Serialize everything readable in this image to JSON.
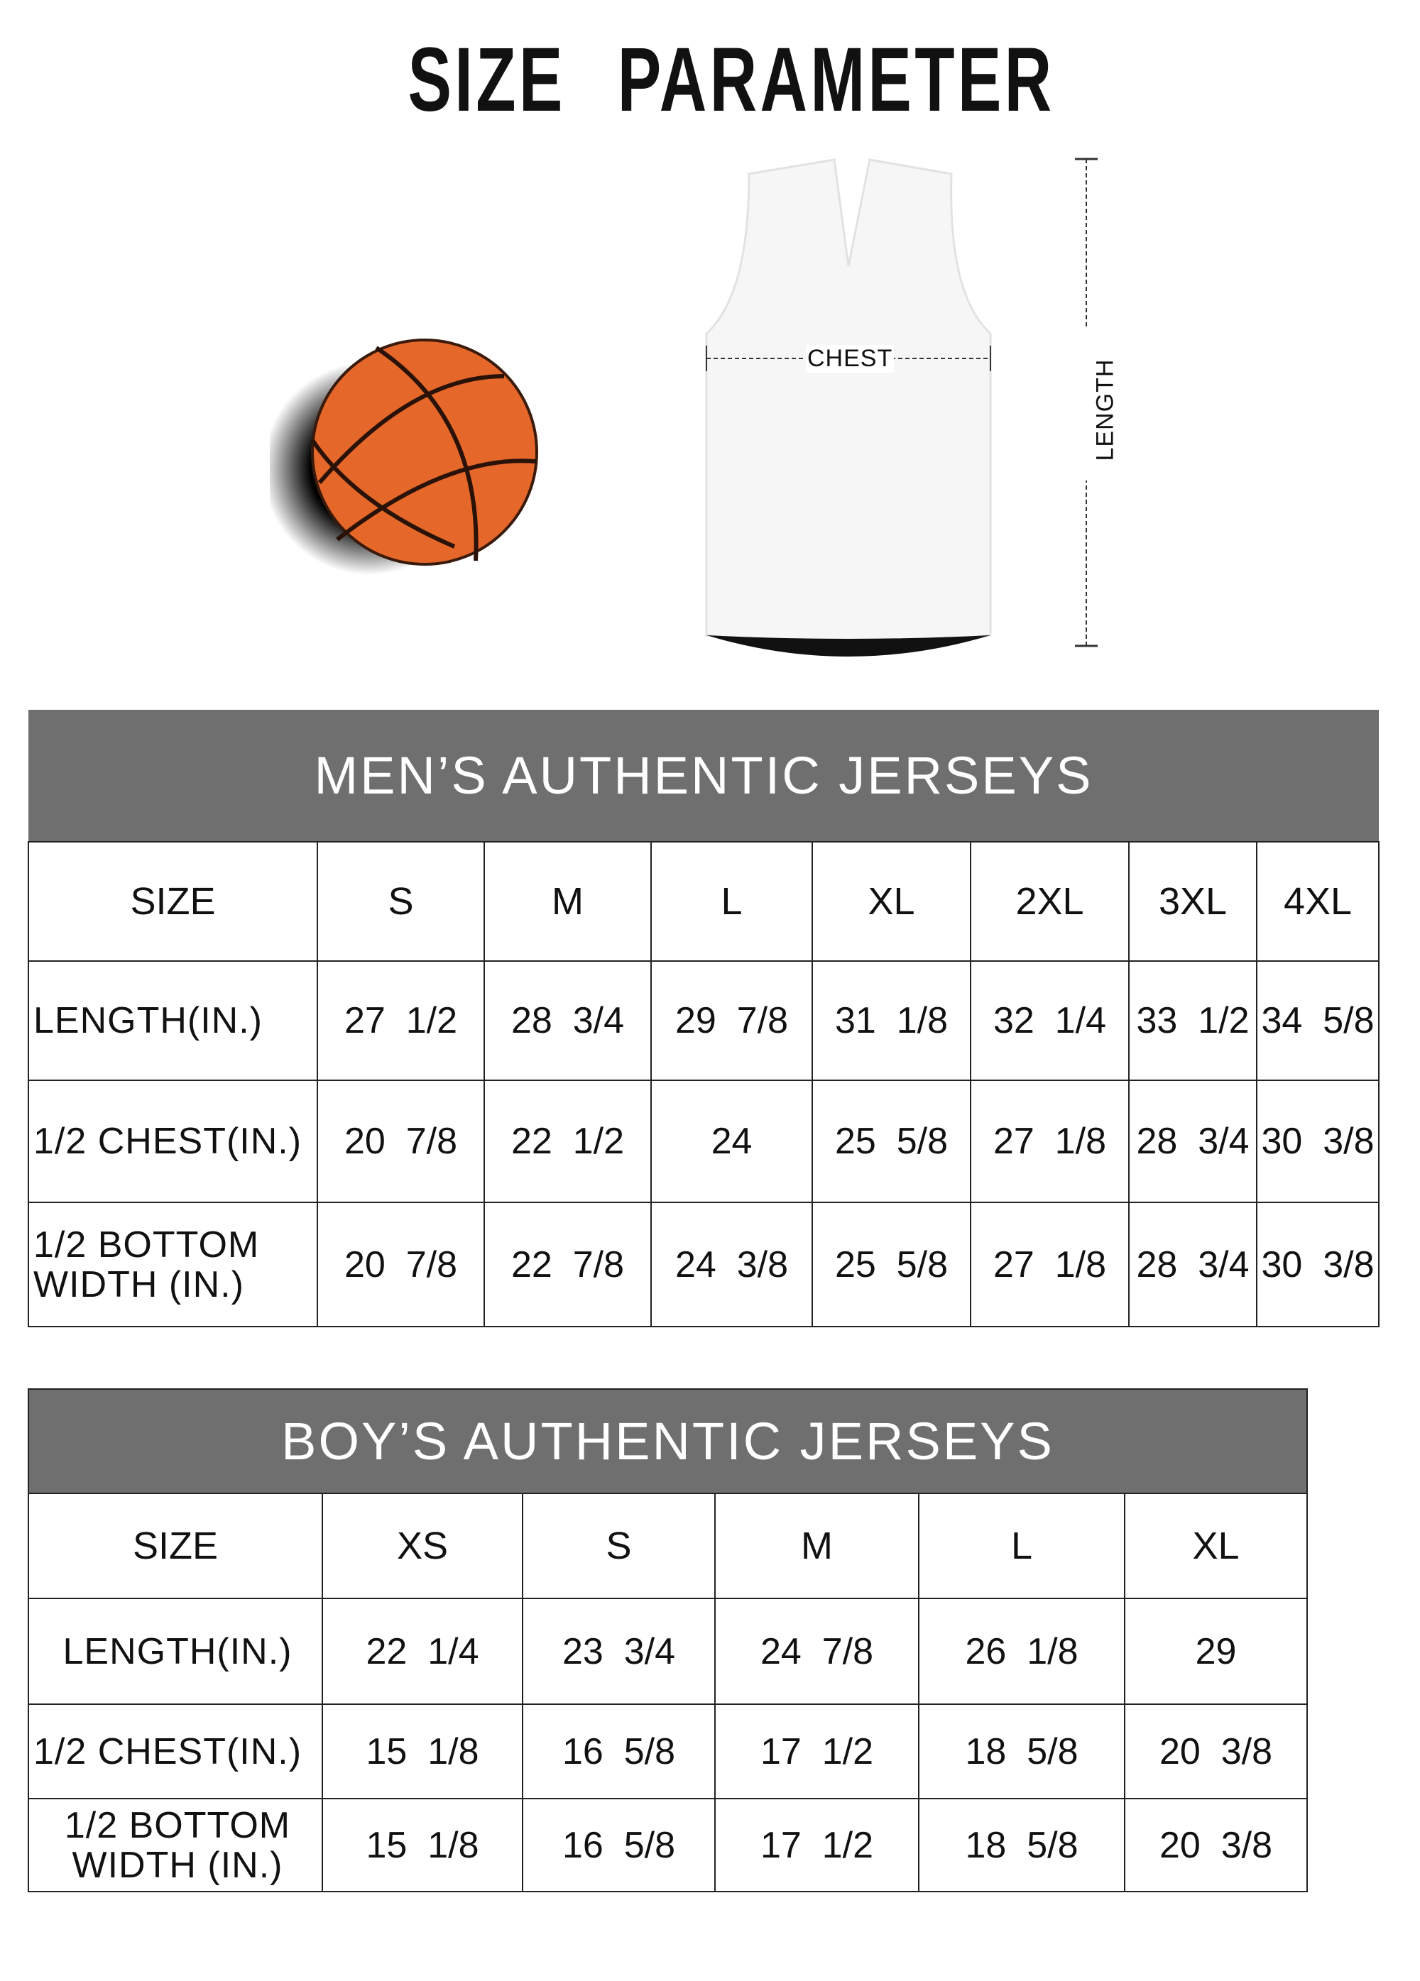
{
  "title": "SIZE PARAMETER",
  "diagram": {
    "chest_label": "CHEST",
    "length_label": "LENGTH",
    "ball_color": "#e5682a"
  },
  "colors": {
    "header_bg": "#6f6f6f",
    "header_text": "#ffffff"
  },
  "men": {
    "title": "MEN’S AUTHENTIC JERSEYS",
    "size_label": "SIZE",
    "sizes": [
      "S",
      "M",
      "L",
      "XL",
      "2XL",
      "3XL",
      "4XL"
    ],
    "rows": [
      {
        "label": "LENGTH(IN.)",
        "values": [
          "27  1/2",
          "28  3/4",
          "29  7/8",
          "31  1/8",
          "32  1/4",
          "33  1/2",
          "34  5/8"
        ]
      },
      {
        "label": "1/2 CHEST(IN.)",
        "values": [
          "20  7/8",
          "22  1/2",
          "24",
          "25  5/8",
          "27  1/8",
          "28  3/4",
          "30  3/8"
        ]
      },
      {
        "label": "1/2 BOTTOM WIDTH  (IN.)",
        "values": [
          "20  7/8",
          "22  7/8",
          "24  3/8",
          "25  5/8",
          "27  1/8",
          "28  3/4",
          "30  3/8"
        ]
      }
    ]
  },
  "boy": {
    "title": "BOY’S AUTHENTIC JERSEYS",
    "size_label": "SIZE",
    "sizes": [
      "XS",
      "S",
      "M",
      "L",
      "XL"
    ],
    "rows": [
      {
        "label": "LENGTH(IN.)",
        "values": [
          "22  1/4",
          "23  3/4",
          "24  7/8",
          "26  1/8",
          "29"
        ]
      },
      {
        "label": "1/2 CHEST(IN.)",
        "values": [
          "15  1/8",
          "16  5/8",
          "17  1/2",
          "18  5/8",
          "20  3/8"
        ]
      },
      {
        "label": "1/2 BOTTOM WIDTH  (IN.)",
        "values": [
          "15  1/8",
          "16  5/8",
          "17  1/2",
          "18  5/8",
          "20  3/8"
        ]
      }
    ]
  }
}
